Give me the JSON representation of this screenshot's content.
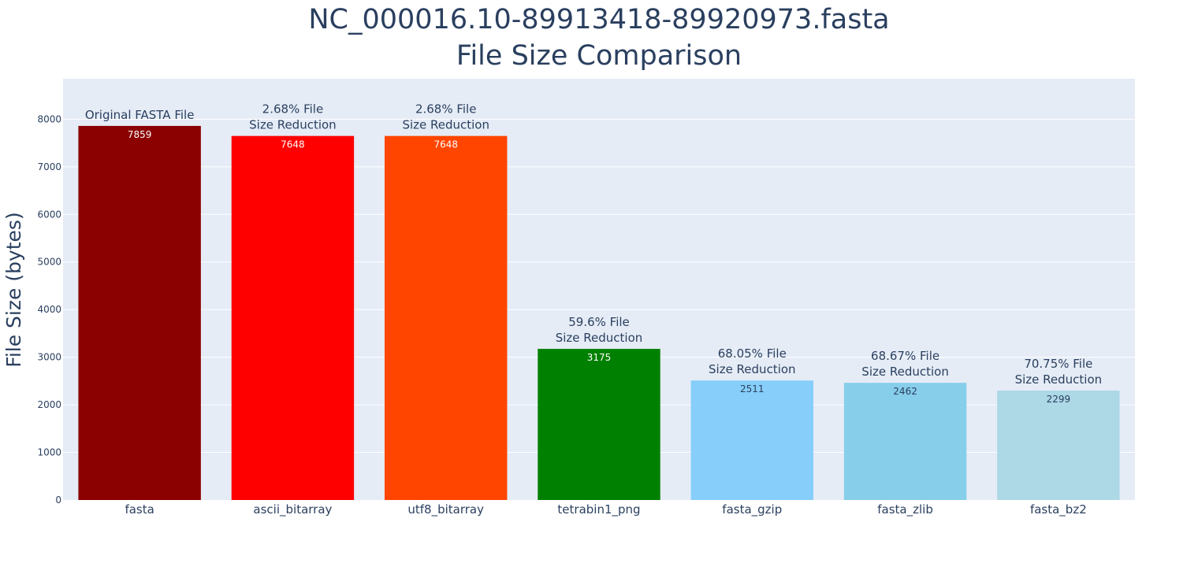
{
  "chart_data": {
    "type": "bar",
    "title": [
      "NC_000016.10-89913418-89920973.fasta",
      "File Size Comparison"
    ],
    "xlabel": "",
    "ylabel": "File Size (bytes)",
    "ylim": [
      0,
      8850
    ],
    "yticks": [
      0,
      1000,
      2000,
      3000,
      4000,
      5000,
      6000,
      7000,
      8000
    ],
    "grid": true,
    "legend": "none",
    "categories": [
      "fasta",
      "ascii_bitarray",
      "utf8_bitarray",
      "tetrabin1_png",
      "fasta_gzip",
      "fasta_zlib",
      "fasta_bz2"
    ],
    "values": [
      7859,
      7648,
      7648,
      3175,
      2511,
      2462,
      2299
    ],
    "colors": [
      "#8b0000",
      "#ff0000",
      "#ff4500",
      "#008000",
      "#87cefa",
      "#87ceeb",
      "#add8e6"
    ],
    "value_label_colors": [
      "#ffffff",
      "#ffffff",
      "#ffffff",
      "#ffffff",
      "#2a3f5f",
      "#2a3f5f",
      "#2a3f5f"
    ],
    "annotations": [
      [
        "Original FASTA File"
      ],
      [
        "2.68% File",
        "Size Reduction"
      ],
      [
        "2.68% File",
        "Size Reduction"
      ],
      [
        "59.6% File",
        "Size Reduction"
      ],
      [
        "68.05% File",
        "Size Reduction"
      ],
      [
        "68.67% File",
        "Size Reduction"
      ],
      [
        "70.75% File",
        "Size Reduction"
      ]
    ]
  }
}
